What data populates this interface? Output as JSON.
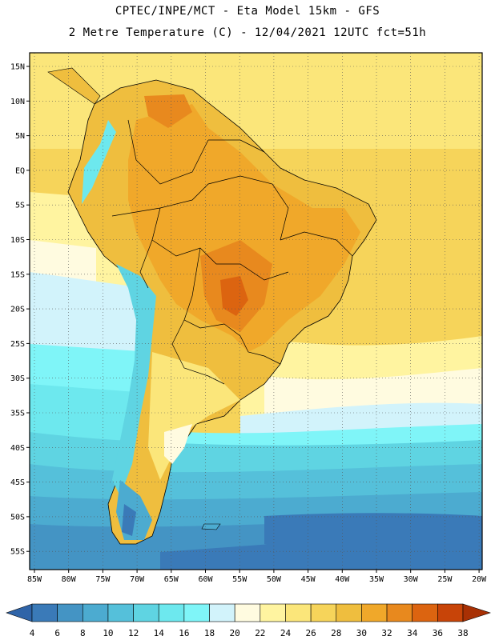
{
  "header": {
    "line1": "CPTEC/INPE/MCT -  Eta Model 15km - GFS",
    "line2": "2 Metre Temperature (C) - 12/04/2021 12UTC fct=51h"
  },
  "map": {
    "lat_labels": [
      "15N",
      "10N",
      "5N",
      "EQ",
      "5S",
      "10S",
      "15S",
      "20S",
      "25S",
      "30S",
      "35S",
      "40S",
      "45S",
      "50S",
      "55S"
    ],
    "lon_labels": [
      "85W",
      "80W",
      "75W",
      "70W",
      "65W",
      "60W",
      "55W",
      "50W",
      "45W",
      "40W",
      "35W",
      "30W",
      "25W",
      "20W"
    ]
  },
  "colorbar": {
    "labels": [
      "4",
      "6",
      "8",
      "10",
      "12",
      "14",
      "16",
      "18",
      "20",
      "22",
      "24",
      "26",
      "28",
      "30",
      "32",
      "34",
      "36",
      "38"
    ],
    "colors": [
      "#2f64a8",
      "#3a7ab8",
      "#4494c4",
      "#4cabd0",
      "#55c0da",
      "#5fd4e2",
      "#6de8ee",
      "#7ff5f8",
      "#d2f3fb",
      "#fffbe0",
      "#fff4a0",
      "#fbe67a",
      "#f6d45a",
      "#efbe3e",
      "#f0a82a",
      "#e8891e",
      "#dc6410",
      "#c84408",
      "#a83004"
    ]
  }
}
